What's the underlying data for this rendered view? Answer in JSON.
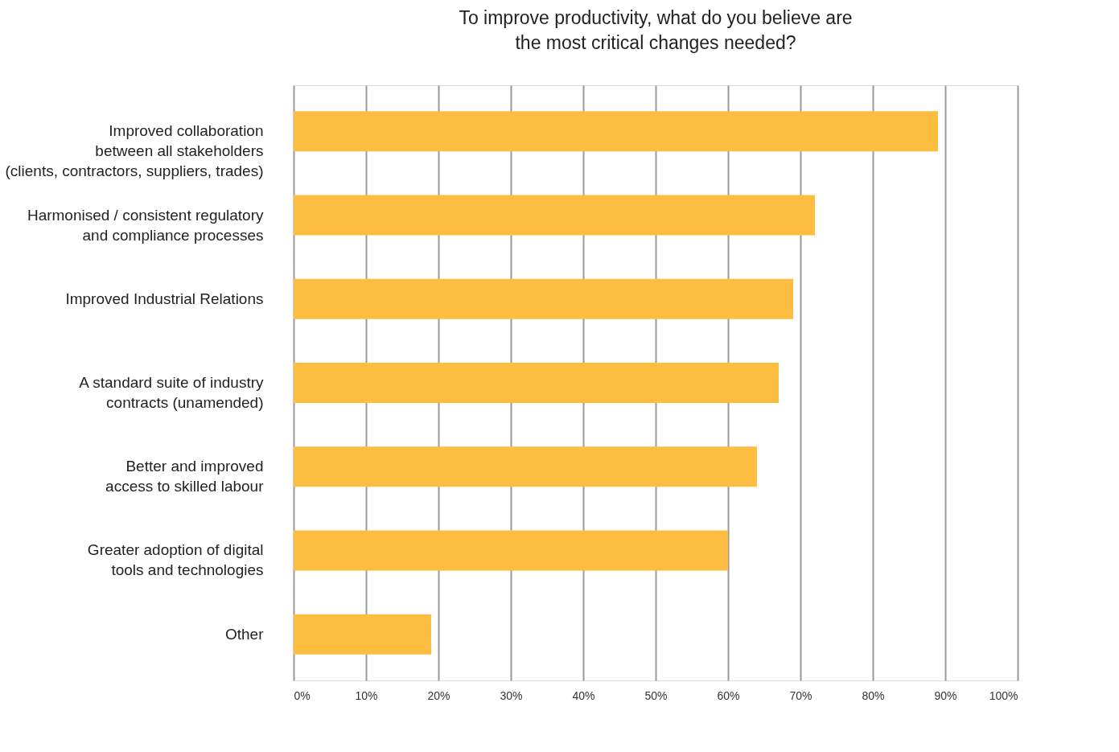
{
  "chart_data": {
    "type": "bar",
    "orientation": "horizontal",
    "title": "To improve productivity, what do you believe are\nthe most critical changes needed?",
    "categories": [
      "Improved collaboration\nbetween all stakeholders\n(clients, contractors, suppliers, trades)",
      "Harmonised / consistent regulatory\nand compliance processes",
      "Improved Industrial Relations",
      "A standard suite of industry\ncontracts (unamended)",
      "Better and improved\naccess to skilled labour",
      "Greater adoption of digital\ntools and technologies",
      "Other"
    ],
    "values": [
      89,
      72,
      69,
      67,
      64,
      60,
      19
    ],
    "color": "#fdbd41",
    "xlim": [
      0,
      100
    ],
    "xticks": [
      {
        "value": 0,
        "label": "0%"
      },
      {
        "value": 10,
        "label": "10%"
      },
      {
        "value": 20,
        "label": "20%"
      },
      {
        "value": 30,
        "label": "30%"
      },
      {
        "value": 40,
        "label": "40%"
      },
      {
        "value": 50,
        "label": "50%"
      },
      {
        "value": 60,
        "label": "60%"
      },
      {
        "value": 70,
        "label": "70%"
      },
      {
        "value": 80,
        "label": "80%"
      },
      {
        "value": 90,
        "label": "90%"
      },
      {
        "value": 100,
        "label": "100%"
      }
    ],
    "grid": "x"
  }
}
